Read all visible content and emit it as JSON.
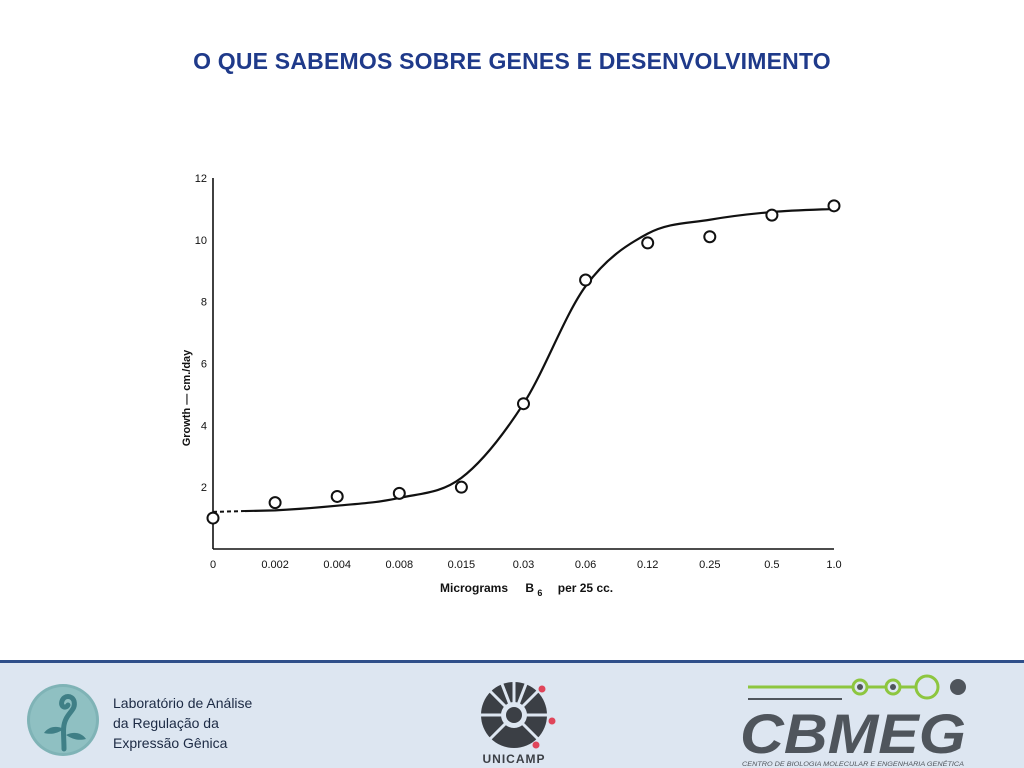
{
  "slide": {
    "title": "O QUE SABEMOS SOBRE GENES E DESENVOLVIMENTO"
  },
  "chart_data": {
    "type": "scatter",
    "title": "",
    "xlabel_prefix": "Micrograms",
    "xlabel_symbol": "B",
    "xlabel_subscript": "6",
    "xlabel_suffix": "per  25 cc.",
    "ylabel": "Growth — cm./day",
    "x_scale": "categorical-log-doubling",
    "categories": [
      "0",
      "0.002",
      "0.004",
      "0.008",
      "0.015",
      "0.03",
      "0.06",
      "0.12",
      "0.25",
      "0.5",
      "1.0"
    ],
    "yticks": [
      "2",
      "4",
      "6",
      "8",
      "10",
      "12"
    ],
    "ylim": [
      0,
      12
    ],
    "grid": false,
    "legend": "none",
    "series": [
      {
        "marker": "open-circle",
        "values": [
          1.0,
          1.5,
          1.7,
          1.8,
          2.0,
          4.7,
          8.7,
          9.9,
          10.1,
          10.8,
          11.1
        ]
      }
    ],
    "fit_curve": {
      "style": "smooth sigmoid, dashed near 0",
      "values": [
        1.2,
        1.25,
        1.4,
        1.65,
        2.3,
        4.7,
        8.5,
        10.2,
        10.65,
        10.9,
        11.0
      ]
    },
    "colors": {
      "ink": "#111111"
    }
  },
  "footer": {
    "lab_name_lines": [
      "Laboratório de Análise",
      "da Regulação da",
      "Expressão Gênica"
    ],
    "unicamp_label": "UNICAMP",
    "cbmeg_label": "CBMEG",
    "cbmeg_subtitle": "CENTRO DE BIOLOGIA MOLECULAR E ENGENHARIA GENÉTICA",
    "colors": {
      "footer_bg": "#dde6f1",
      "footer_border": "#2f4f8a",
      "lab_teal": "#7fb3b6",
      "cbmeg_gray": "#4f555c",
      "cbmeg_green": "#8dc63f"
    }
  },
  "icons": {
    "lab_logo": "seedling-figure-icon",
    "unicamp_logo": "unicamp-seal-icon",
    "cbmeg_logo": "dna-dots-icon"
  }
}
